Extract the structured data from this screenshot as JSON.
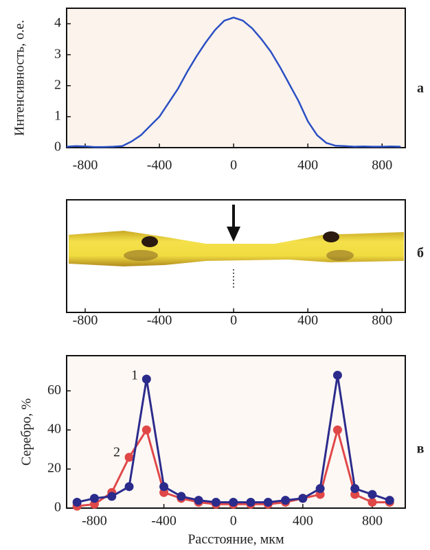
{
  "chart_data": [
    {
      "type": "line",
      "panel_label": "а",
      "y_label": "Интенсивность, о.е.",
      "color": "#2a4fc4",
      "x": [
        -900,
        -850,
        -800,
        -750,
        -700,
        -650,
        -600,
        -550,
        -500,
        -450,
        -400,
        -350,
        -300,
        -250,
        -200,
        -150,
        -100,
        -50,
        0,
        50,
        100,
        150,
        200,
        250,
        300,
        350,
        400,
        450,
        500,
        550,
        600,
        650,
        700,
        750,
        800,
        850,
        900
      ],
      "values": [
        0.03,
        0.05,
        0.04,
        0.02,
        0.02,
        0.03,
        0.05,
        0.2,
        0.4,
        0.7,
        1.0,
        1.45,
        1.9,
        2.45,
        2.95,
        3.4,
        3.8,
        4.1,
        4.2,
        4.1,
        3.85,
        3.5,
        3.1,
        2.6,
        2.05,
        1.5,
        0.85,
        0.4,
        0.15,
        0.06,
        0.05,
        0.03,
        0.04,
        0.03,
        0.03,
        0.04,
        0.03
      ],
      "xlim": [
        -900,
        925
      ],
      "xticks": [
        -800,
        -400,
        0,
        400,
        800
      ],
      "ylim": [
        0,
        4.5
      ],
      "yticks": [
        0,
        1,
        2,
        3,
        4
      ]
    },
    {
      "type": "image",
      "panel_label": "б",
      "xlim": [
        -900,
        925
      ],
      "xticks": [
        -800,
        -400,
        0,
        400,
        800
      ]
    },
    {
      "type": "line",
      "panel_label": "в",
      "y_label": "Серебро, %",
      "x_label": "Расстояние, мкм",
      "markers": true,
      "x": [
        -900,
        -800,
        -700,
        -600,
        -500,
        -400,
        -300,
        -200,
        -100,
        0,
        100,
        200,
        300,
        400,
        500,
        600,
        700,
        800,
        900
      ],
      "series": [
        {
          "name": "1",
          "color": "#2b2b8c",
          "values": [
            3,
            5,
            6,
            11,
            66,
            11,
            6,
            4,
            3,
            3,
            3,
            3,
            4,
            5,
            10,
            68,
            10,
            7,
            4
          ]
        },
        {
          "name": "2",
          "color": "#e04848",
          "values": [
            1,
            2,
            8,
            26,
            40,
            8,
            5,
            3,
            2,
            2,
            2,
            2,
            3,
            5,
            7,
            40,
            7,
            3,
            3
          ]
        }
      ],
      "xlim": [
        -960,
        990
      ],
      "xticks": [
        -800,
        -400,
        0,
        400,
        800
      ],
      "ylim": [
        0,
        78
      ],
      "yticks": [
        0,
        20,
        40,
        60
      ]
    }
  ]
}
